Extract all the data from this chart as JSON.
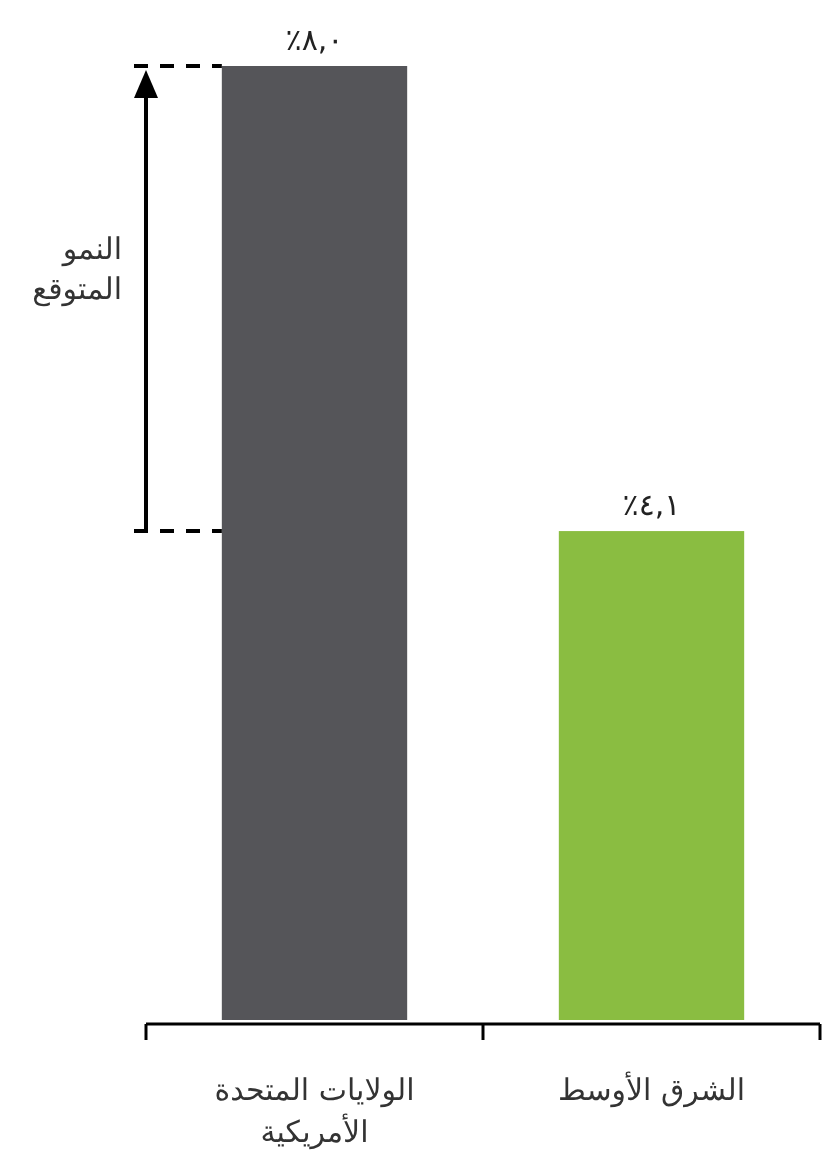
{
  "chart_data": {
    "type": "bar",
    "categories": [
      "الولايات المتحدة الأمريكية",
      "الشرق الأوسط"
    ],
    "values": [
      8.0,
      4.1
    ],
    "colors": [
      "#555559",
      "#8abd41"
    ],
    "value_labels": [
      "٪٨,٠",
      "٪٤,١"
    ],
    "ref_lines": [
      {
        "axis": "y",
        "value": 8.0,
        "color": "#000000",
        "line_style": "dashed"
      },
      {
        "axis": "y",
        "value": 4.1,
        "color": "#000000",
        "line_style": "dashed"
      }
    ],
    "annotations": [
      "النمو المتوقع"
    ]
  }
}
